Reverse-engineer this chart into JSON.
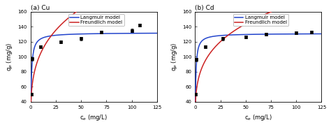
{
  "panel_a": {
    "title": "(a) Cu",
    "xlabel": "c$_e$ (mg/L)",
    "ylabel": "q$_e$ (mg/g)",
    "xlim": [
      0,
      125
    ],
    "ylim": [
      40,
      160
    ],
    "xticks": [
      0,
      25,
      50,
      75,
      100,
      125
    ],
    "yticks": [
      40,
      60,
      80,
      100,
      120,
      140,
      160
    ],
    "data_x": [
      0.5,
      1.2,
      10,
      30,
      50,
      70,
      100,
      108
    ],
    "data_y": [
      50,
      97,
      113,
      120,
      124,
      133,
      135,
      142
    ],
    "data_yerr": [
      2,
      2,
      2,
      2,
      2,
      2,
      2,
      2
    ],
    "langmuir_qmax": 132.0,
    "langmuir_KL": 1.5,
    "freundlich_Kf": 55.0,
    "freundlich_n": 0.28
  },
  "panel_b": {
    "title": "(b) Cd",
    "xlabel": "c$_e$ (mg/L)",
    "ylabel": "q$_e$ (mg/g)",
    "xlim": [
      0,
      125
    ],
    "ylim": [
      40,
      160
    ],
    "xticks": [
      0,
      25,
      50,
      75,
      100,
      125
    ],
    "yticks": [
      40,
      60,
      80,
      100,
      120,
      140,
      160
    ],
    "data_x": [
      0.5,
      1.2,
      10,
      27,
      50,
      70,
      100,
      115
    ],
    "data_y": [
      50,
      96,
      113,
      124,
      126,
      130,
      132,
      133
    ],
    "data_yerr": [
      2,
      2,
      2,
      2,
      2,
      2,
      2,
      2
    ],
    "langmuir_qmax": 131.0,
    "langmuir_KL": 1.8,
    "freundlich_Kf": 52.0,
    "freundlich_n": 0.26
  },
  "langmuir_color": "#2244cc",
  "freundlich_color": "#cc2222",
  "data_color": "black",
  "legend_langmuir": "Langmuir model",
  "legend_freundlich": "Freundlich model",
  "background_color": "#ffffff"
}
